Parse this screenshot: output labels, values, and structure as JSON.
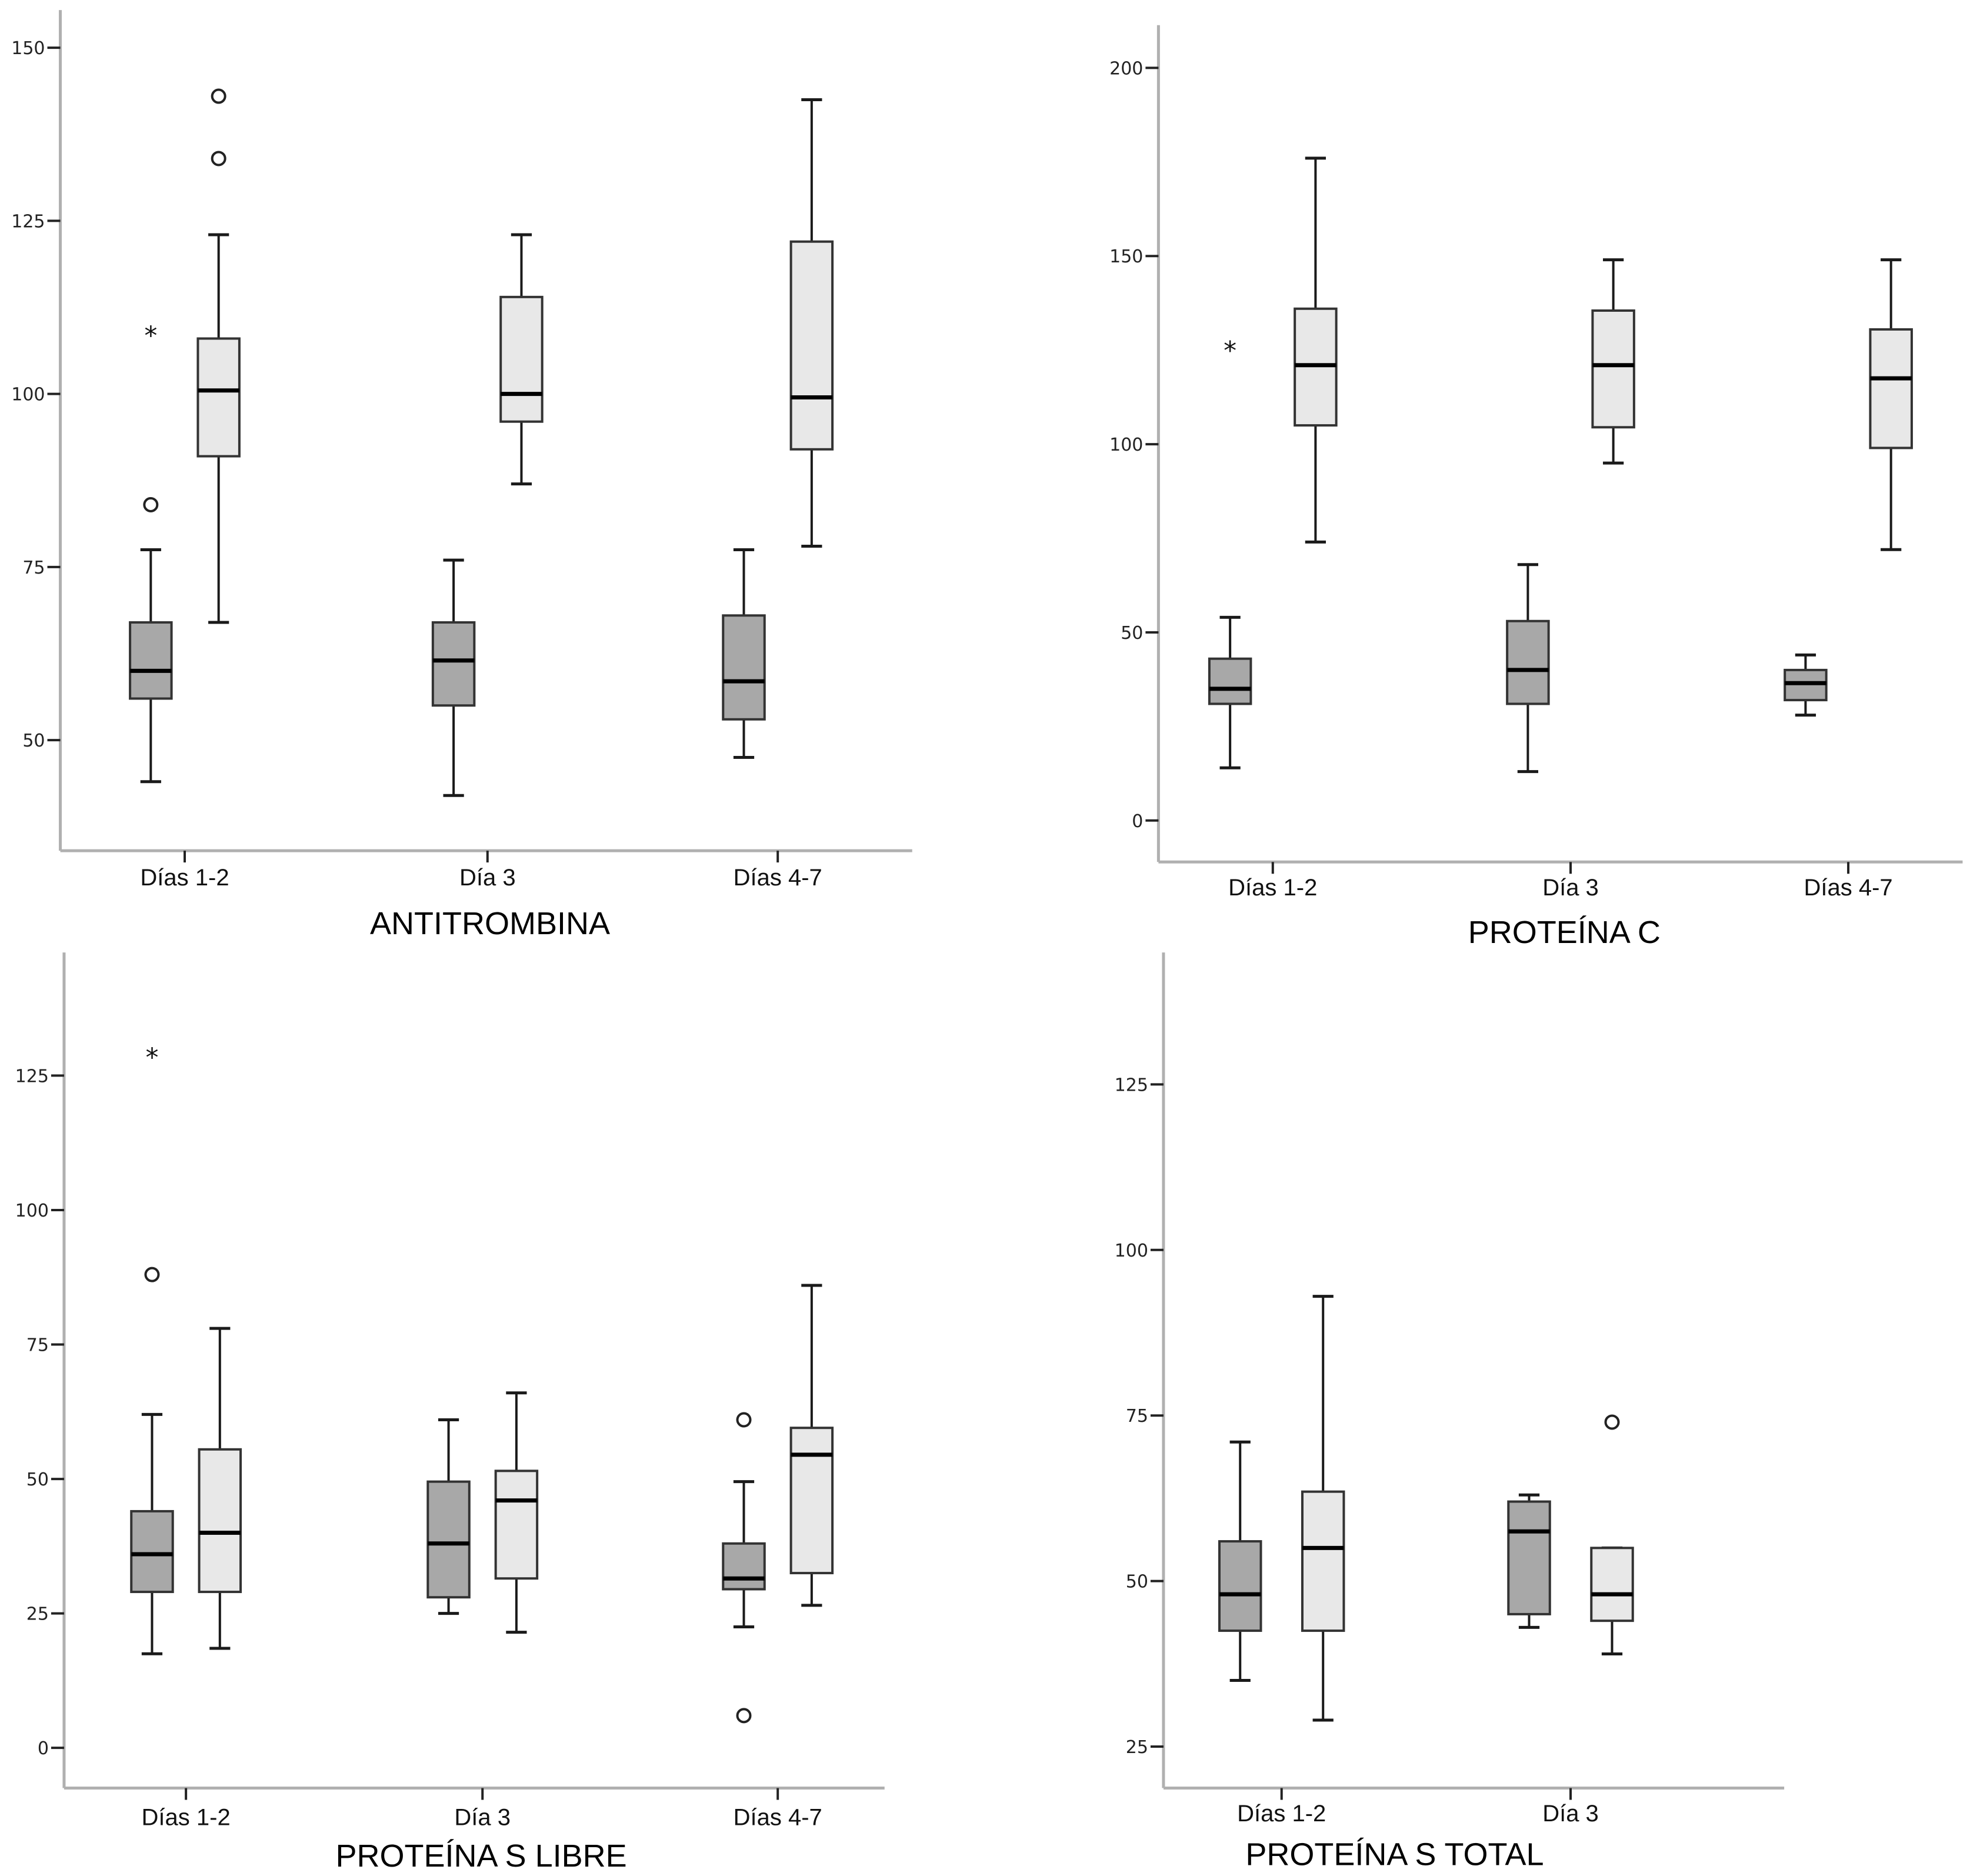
{
  "colors": {
    "group_a": "#a8a8a8",
    "group_b": "#e8e8e8",
    "axis": "#b0b0b0",
    "stroke": "#1a1a1a"
  },
  "chart_data": [
    {
      "type": "box",
      "title": "ANTITROMBINA",
      "categories": [
        "Días 1-2",
        "Día 3",
        "Días 4-7"
      ],
      "ylim": [
        33,
        156
      ],
      "yticks": [
        50,
        75,
        100,
        125,
        150
      ],
      "series": [
        {
          "name": "group_a",
          "boxes": [
            {
              "min": 44,
              "q1": 56,
              "median": 60,
              "q3": 67,
              "max": 77.5,
              "outliers": [
                84
              ],
              "extremes": [
                108.5
              ]
            },
            {
              "min": 42,
              "q1": 55,
              "median": 61.5,
              "q3": 67,
              "max": 76,
              "outliers": [],
              "extremes": []
            },
            {
              "min": 47.5,
              "q1": 53,
              "median": 58.5,
              "q3": 68,
              "max": 77.5,
              "outliers": [],
              "extremes": []
            }
          ]
        },
        {
          "name": "group_b",
          "boxes": [
            {
              "min": 67,
              "q1": 91,
              "median": 100.5,
              "q3": 108,
              "max": 123,
              "outliers": [
                134,
                143
              ],
              "extremes": []
            },
            {
              "min": 87,
              "q1": 96,
              "median": 100,
              "q3": 114,
              "max": 123,
              "outliers": [],
              "extremes": []
            },
            {
              "min": 78,
              "q1": 92,
              "median": 99.5,
              "q3": 122,
              "max": 142.5,
              "outliers": [],
              "extremes": []
            }
          ]
        }
      ]
    },
    {
      "type": "box",
      "title": "PROTEÍNA C",
      "categories": [
        "Días 1-2",
        "Día 3",
        "Días 4-7"
      ],
      "ylim": [
        -11,
        211
      ],
      "yticks": [
        0,
        50,
        100,
        150,
        200
      ],
      "series": [
        {
          "name": "group_a",
          "boxes": [
            {
              "min": 14,
              "q1": 31,
              "median": 35,
              "q3": 43,
              "max": 54,
              "outliers": [],
              "extremes": [
                125
              ]
            },
            {
              "min": 13,
              "q1": 31,
              "median": 40,
              "q3": 53,
              "max": 68,
              "outliers": [],
              "extremes": []
            },
            {
              "min": 28,
              "q1": 32,
              "median": 36.5,
              "q3": 40,
              "max": 44,
              "outliers": [],
              "extremes": []
            }
          ]
        },
        {
          "name": "group_b",
          "boxes": [
            {
              "min": 74,
              "q1": 105,
              "median": 121,
              "q3": 136,
              "max": 176,
              "outliers": [],
              "extremes": []
            },
            {
              "min": 95,
              "q1": 104.5,
              "median": 121,
              "q3": 135.5,
              "max": 149,
              "outliers": [],
              "extremes": []
            },
            {
              "min": 72,
              "q1": 99,
              "median": 117.5,
              "q3": 130.5,
              "max": 149,
              "outliers": [],
              "extremes": []
            }
          ]
        }
      ]
    },
    {
      "type": "box",
      "title": "PROTEÍNA S LIBRE",
      "categories": [
        "Días 1-2",
        "Día 3",
        "Días 4-7"
      ],
      "ylim": [
        -8,
        143
      ],
      "yticks": [
        0,
        25,
        50,
        75,
        100,
        125
      ],
      "series": [
        {
          "name": "group_a",
          "boxes": [
            {
              "min": 17.5,
              "q1": 29,
              "median": 36,
              "q3": 44,
              "max": 62,
              "outliers": [
                88
              ],
              "extremes": [
                128.5
              ]
            },
            {
              "min": 25,
              "q1": 28,
              "median": 38,
              "q3": 49.5,
              "max": 61,
              "outliers": [],
              "extremes": []
            },
            {
              "min": 22.5,
              "q1": 29.5,
              "median": 31.5,
              "q3": 38,
              "max": 49.5,
              "outliers": [
                6,
                61
              ],
              "extremes": []
            }
          ]
        },
        {
          "name": "group_b",
          "boxes": [
            {
              "min": 18.5,
              "q1": 29,
              "median": 40,
              "q3": 55.5,
              "max": 78,
              "outliers": [],
              "extremes": []
            },
            {
              "min": 21.5,
              "q1": 31.5,
              "median": 46,
              "q3": 51.5,
              "max": 66,
              "outliers": [],
              "extremes": []
            },
            {
              "min": 26.5,
              "q1": 32.5,
              "median": 54.5,
              "q3": 59.5,
              "max": 86,
              "outliers": [],
              "extremes": []
            }
          ]
        }
      ]
    },
    {
      "type": "box",
      "title": "PROTEÍNA S TOTAL",
      "categories": [
        "Días 1-2",
        "Día 3"
      ],
      "ylim": [
        18,
        145
      ],
      "yticks": [
        25,
        50,
        75,
        100,
        125
      ],
      "series": [
        {
          "name": "group_a",
          "boxes": [
            {
              "min": 35,
              "q1": 42.5,
              "median": 48,
              "q3": 56,
              "max": 71,
              "outliers": [],
              "extremes": []
            },
            {
              "min": 43,
              "q1": 45,
              "median": 57.5,
              "q3": 62,
              "max": 63,
              "outliers": [],
              "extremes": []
            }
          ]
        },
        {
          "name": "group_b",
          "boxes": [
            {
              "min": 29,
              "q1": 42.5,
              "median": 55,
              "q3": 63.5,
              "max": 93,
              "outliers": [],
              "extremes": []
            },
            {
              "min": 39,
              "q1": 44,
              "median": 48,
              "q3": 55,
              "max": 55,
              "outliers": [
                74
              ],
              "extremes": []
            }
          ]
        }
      ]
    }
  ]
}
